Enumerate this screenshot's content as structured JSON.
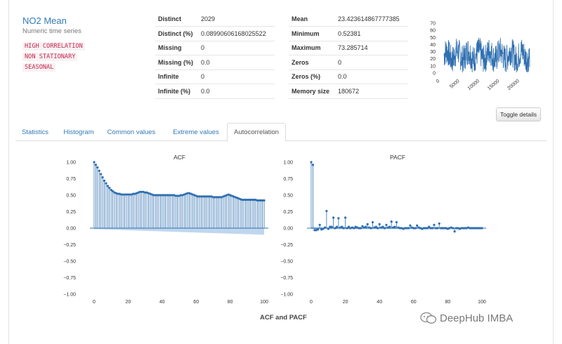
{
  "variable": {
    "name": "NO2 Mean",
    "type": "Numeric time series",
    "alerts": [
      "HIGH CORRELATION",
      "NON STATIONARY",
      "SEASONAL"
    ]
  },
  "stats_left": [
    {
      "label": "Distinct",
      "value": "2029"
    },
    {
      "label": "Distinct (%)",
      "value": "0.08990606168025522"
    },
    {
      "label": "Missing",
      "value": "0"
    },
    {
      "label": "Missing (%)",
      "value": "0.0"
    },
    {
      "label": "Infinite",
      "value": "0"
    },
    {
      "label": "Infinite (%)",
      "value": "0.0"
    }
  ],
  "stats_right": [
    {
      "label": "Mean",
      "value": "23.423614867777385"
    },
    {
      "label": "Minimum",
      "value": "0.52381"
    },
    {
      "label": "Maximum",
      "value": "73.285714"
    },
    {
      "label": "Zeros",
      "value": "0"
    },
    {
      "label": "Zeros (%)",
      "value": "0.0"
    },
    {
      "label": "Memory size",
      "value": "180672"
    }
  ],
  "toggle_label": "Toggle details",
  "tabs": [
    {
      "label": "Statistics"
    },
    {
      "label": "Histogram"
    },
    {
      "label": "Common values"
    },
    {
      "label": "Extreme values"
    },
    {
      "label": "Autocorrelation",
      "active": true
    }
  ],
  "figure_caption": "ACF and PACF",
  "watermark": "DeepHub IMBA",
  "colors": {
    "accent": "#337ab7",
    "series": "#2f6fb0",
    "band": "#a9c9e8"
  },
  "chart_data": [
    {
      "type": "line",
      "title": "",
      "x_ticks": [
        "0",
        "5000",
        "10000",
        "15000",
        "20000"
      ],
      "y_ticks": [
        "0",
        "10",
        "20",
        "30",
        "40",
        "50",
        "60",
        "70"
      ],
      "ylim": [
        0,
        73
      ],
      "xlim": [
        0,
        22570
      ],
      "periods": 8,
      "series": [
        {
          "values_description_range": [
            0.52,
            73.29
          ]
        }
      ]
    },
    {
      "type": "bar",
      "title": "ACF",
      "xlim": [
        0,
        100
      ],
      "ylim": [
        -1.0,
        1.0
      ],
      "x_ticks": [
        "0",
        "20",
        "40",
        "60",
        "80",
        "100"
      ],
      "y_ticks": [
        "1.00",
        "0.75",
        "0.50",
        "0.25",
        "0.00",
        "−0.25",
        "−0.50",
        "−0.75",
        "−1.00"
      ],
      "lag_values": [
        1.0,
        0.96,
        0.92,
        0.87,
        0.82,
        0.77,
        0.72,
        0.68,
        0.64,
        0.61,
        0.58,
        0.56,
        0.54,
        0.53,
        0.52,
        0.52,
        0.51,
        0.51,
        0.51,
        0.51,
        0.51,
        0.51,
        0.51,
        0.52,
        0.52,
        0.53,
        0.54,
        0.55,
        0.55,
        0.55,
        0.54,
        0.54,
        0.53,
        0.52,
        0.51,
        0.5,
        0.5,
        0.5,
        0.5,
        0.5,
        0.5,
        0.5,
        0.5,
        0.5,
        0.5,
        0.5,
        0.5,
        0.5,
        0.49,
        0.49,
        0.49,
        0.5,
        0.5,
        0.51,
        0.52,
        0.53,
        0.53,
        0.52,
        0.51,
        0.5,
        0.49,
        0.48,
        0.48,
        0.48,
        0.48,
        0.48,
        0.48,
        0.48,
        0.48,
        0.48,
        0.47,
        0.47,
        0.47,
        0.47,
        0.47,
        0.47,
        0.48,
        0.49,
        0.5,
        0.51,
        0.5,
        0.49,
        0.48,
        0.47,
        0.46,
        0.45,
        0.44,
        0.43,
        0.43,
        0.43,
        0.43,
        0.43,
        0.43,
        0.43,
        0.43,
        0.43,
        0.42,
        0.42,
        0.42,
        0.42,
        0.42
      ],
      "band_lower_end": -0.1
    },
    {
      "type": "bar",
      "title": "PACF",
      "xlim": [
        0,
        100
      ],
      "ylim": [
        -1.0,
        1.0
      ],
      "x_ticks": [
        "0",
        "20",
        "40",
        "60",
        "80",
        "100"
      ],
      "y_ticks": [
        "1.00",
        "0.75",
        "0.50",
        "0.25",
        "0.00",
        "−0.25",
        "−0.50",
        "−0.75",
        "−1.00"
      ],
      "lag_values": [
        1.0,
        0.96,
        -0.03,
        -0.03,
        -0.02,
        0.05,
        -0.02,
        -0.01,
        0.01,
        0.26,
        -0.01,
        0.02,
        0.02,
        0.16,
        0.0,
        0.02,
        0.15,
        0.01,
        0.02,
        0.0,
        0.16,
        0.0,
        0.02,
        0.0,
        0.01,
        0.0,
        0.02,
        0.01,
        0.0,
        0.0,
        0.03,
        0.01,
        0.02,
        0.06,
        0.01,
        0.0,
        0.09,
        0.01,
        0.02,
        0.0,
        0.06,
        0.01,
        0.02,
        0.0,
        0.05,
        0.01,
        0.02,
        0.1,
        0.01,
        0.02,
        0.09,
        0.01,
        0.0,
        0.0,
        -0.01,
        0.0,
        0.0,
        0.0,
        0.04,
        0.01,
        0.0,
        0.0,
        0.04,
        0.01,
        0.0,
        -0.01,
        0.0,
        0.0,
        0.0,
        0.02,
        0.0,
        0.0,
        0.05,
        0.0,
        0.0,
        0.07,
        0.0,
        0.0,
        0.0,
        0.0,
        -0.01,
        0.0,
        0.01,
        0.0,
        -0.05,
        0.0,
        0.0,
        -0.01,
        0.0,
        0.0,
        0.0,
        0.0,
        0.01,
        0.0,
        0.0,
        0.0,
        0.0,
        0.0,
        0.0,
        0.0,
        0.0
      ]
    }
  ]
}
